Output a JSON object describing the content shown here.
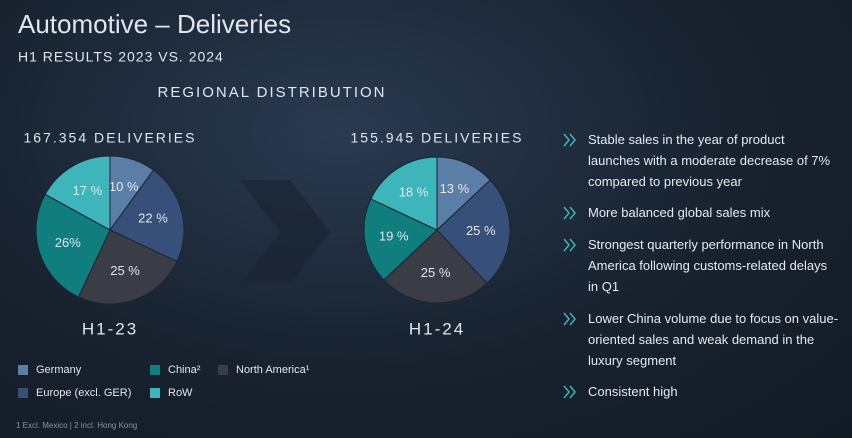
{
  "slide": {
    "title": "Automotive – Deliveries",
    "subtitle": "H1 RESULTS 2023 VS. 2024",
    "section_heading": "REGIONAL DISTRIBUTION",
    "bullets": [
      "Stable sales in the year of product launches with a moderate decrease of 7% compared to previous year",
      "More balanced global sales mix",
      "Strongest quarterly performance in North America following customs-related delays in Q1",
      "Lower China volume due to focus on value-oriented sales and weak demand in the luxury segment",
      "Consistent high"
    ],
    "footnote": "1 Excl. Mexico | 2 incl. Hong Kong"
  },
  "chart_data": [
    {
      "type": "pie",
      "title": "167.354 DELIVERIES",
      "caption": "H1-23",
      "categories": [
        "Germany",
        "Europe (excl. GER)",
        "North America¹",
        "China²",
        "RoW"
      ],
      "values": [
        10,
        22,
        25,
        26,
        17
      ],
      "value_labels": [
        "10 %",
        "22 %",
        "25 %",
        "26%",
        "17 %"
      ],
      "colors": [
        "#5a7ea6",
        "#36507a",
        "#3a3d45",
        "#107d7e",
        "#3db5bb"
      ]
    },
    {
      "type": "pie",
      "title": "155.945 DELIVERIES",
      "caption": "H1-24",
      "categories": [
        "Germany",
        "Europe (excl. GER)",
        "North America¹",
        "China²",
        "RoW"
      ],
      "values": [
        13,
        25,
        25,
        19,
        18
      ],
      "value_labels": [
        "13 %",
        "25 %",
        "25 %",
        "19 %",
        "18 %"
      ],
      "colors": [
        "#5a7ea6",
        "#36507a",
        "#3a3d45",
        "#107d7e",
        "#3db5bb"
      ]
    }
  ]
}
